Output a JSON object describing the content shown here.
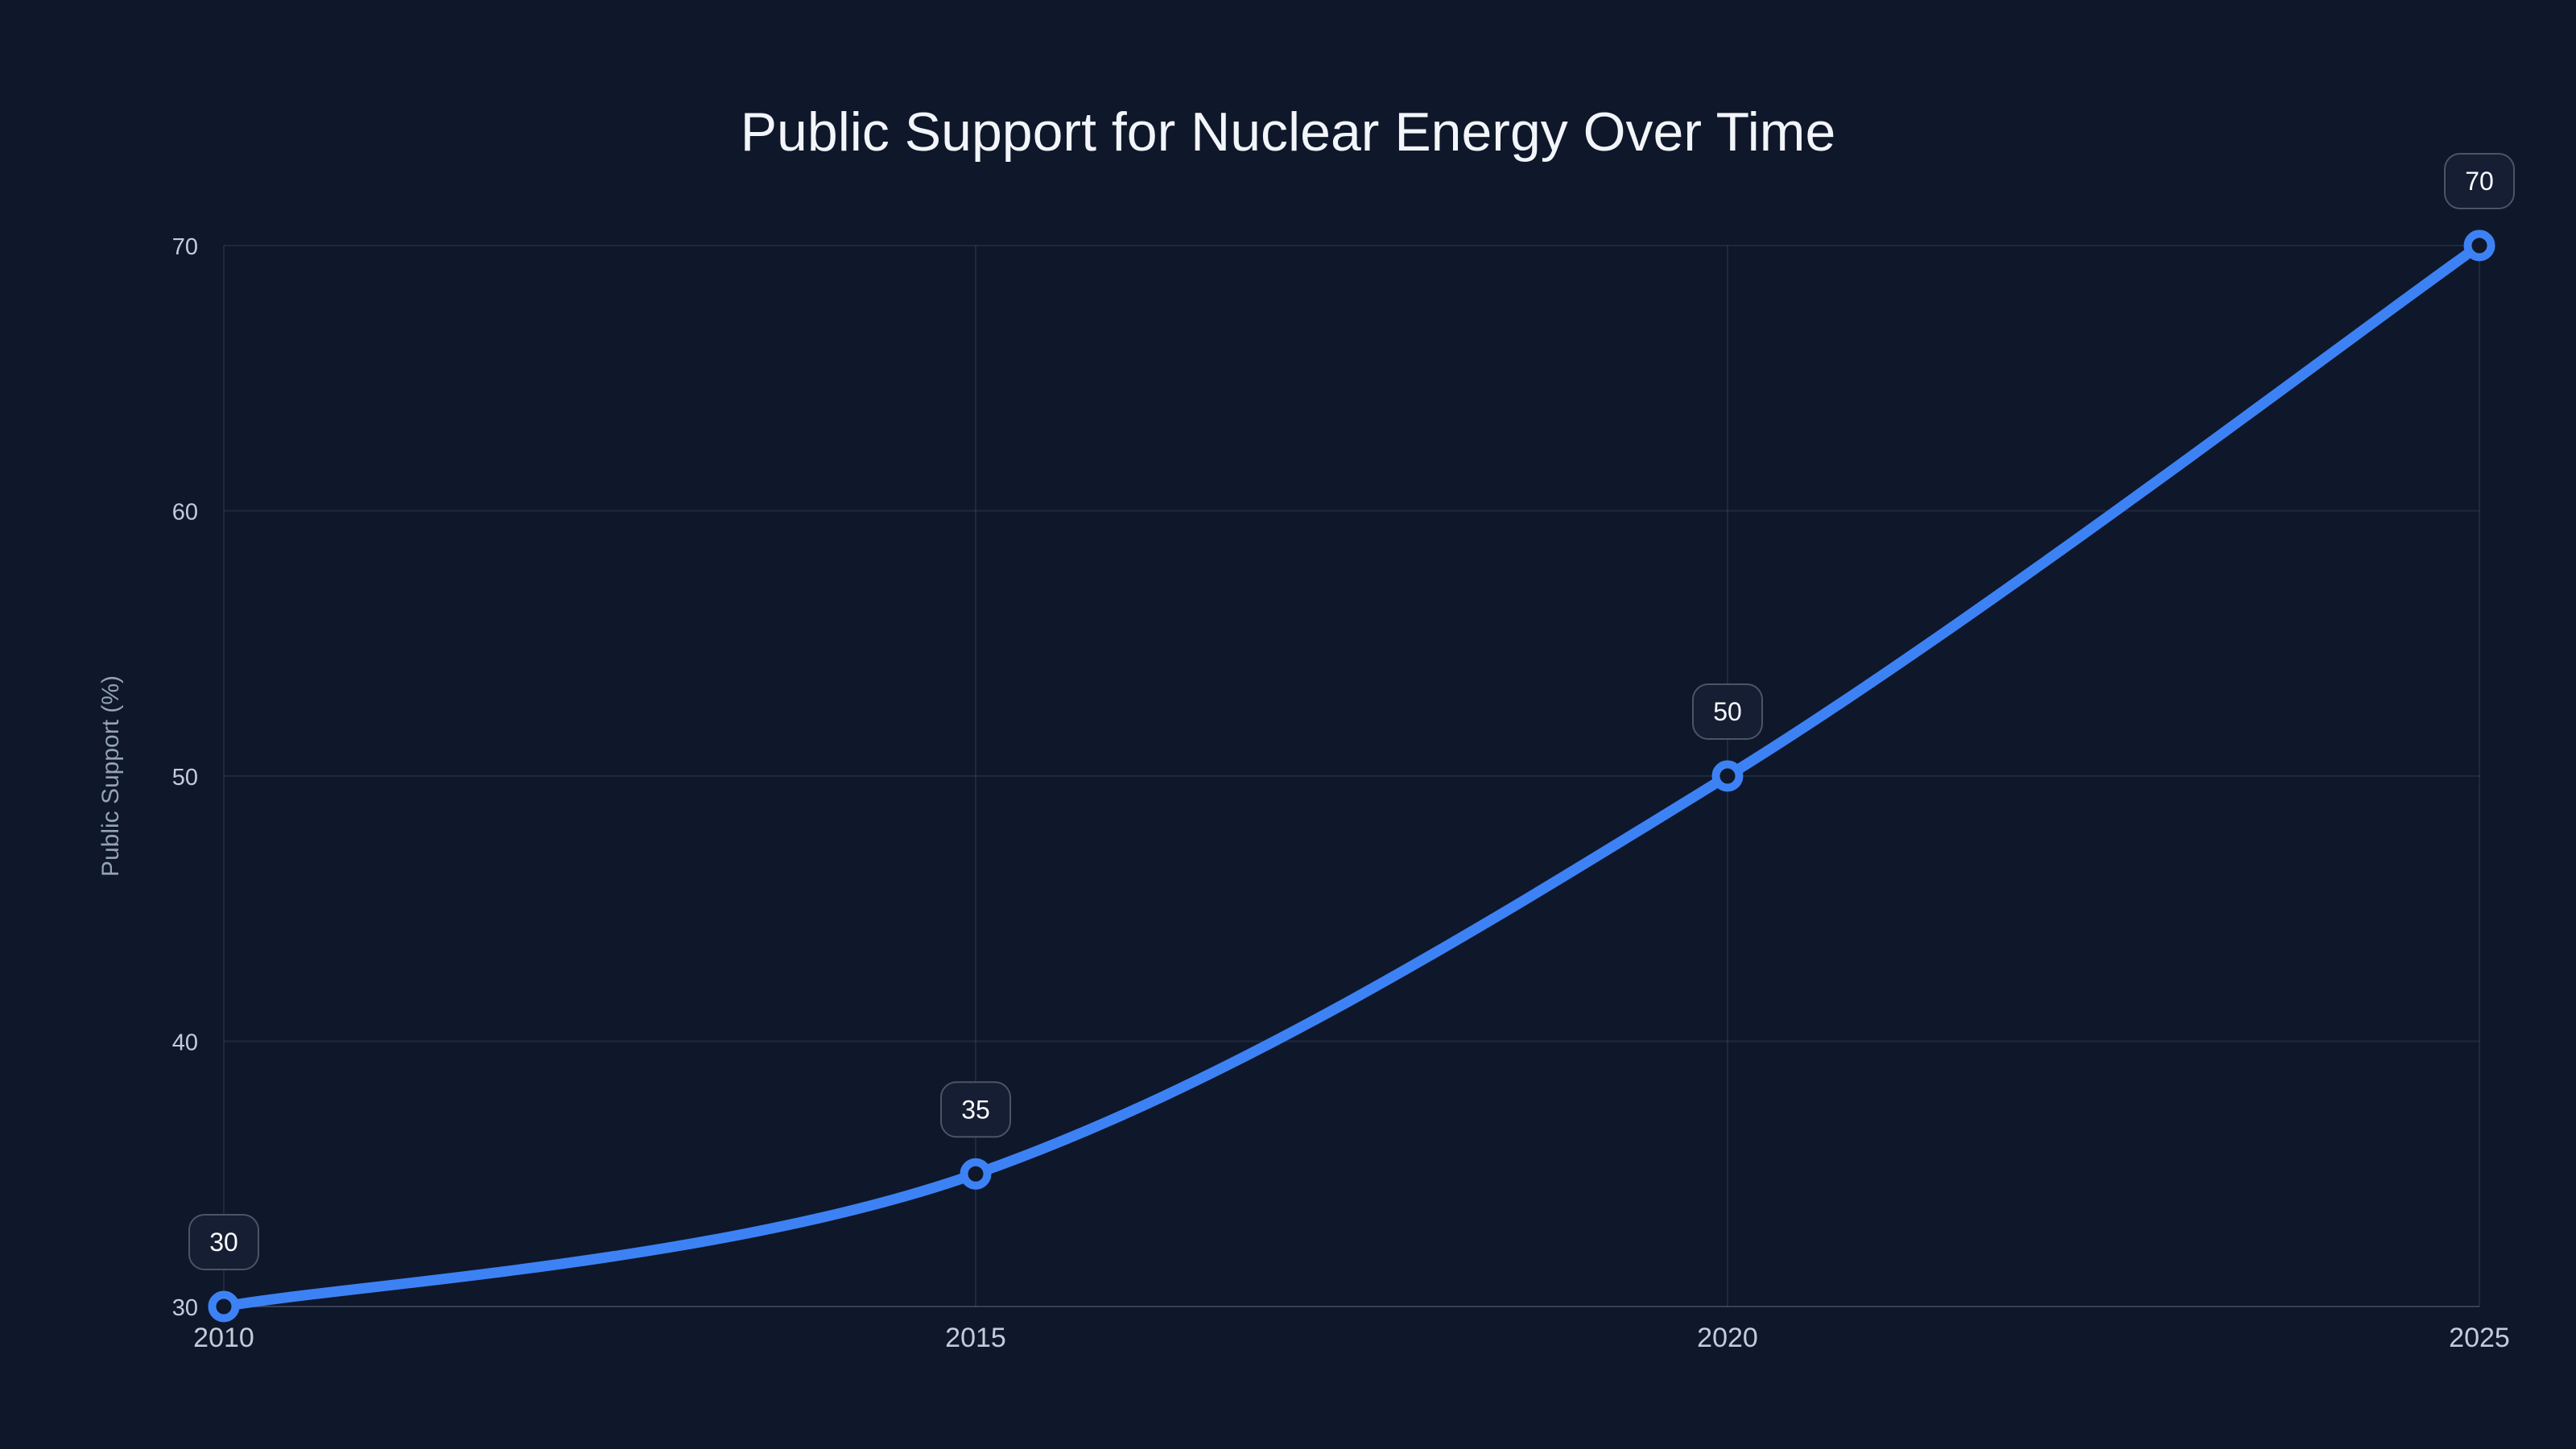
{
  "page": {
    "background": "#0f172a"
  },
  "chart_data": {
    "type": "line",
    "title": "Public Support for Nuclear Energy Over Time",
    "xlabel": "",
    "ylabel": "Public Support (%)",
    "x": [
      2010,
      2015,
      2020,
      2025
    ],
    "series": [
      {
        "name": "Public Support (%)",
        "values": [
          30,
          35,
          50,
          70
        ]
      }
    ],
    "data_labels": [
      "30",
      "35",
      "50",
      "70"
    ],
    "xticks": [
      "2010",
      "2015",
      "2020",
      "2025"
    ],
    "yticks": [
      "30",
      "40",
      "50",
      "60",
      "70"
    ],
    "ytick_values": [
      30,
      40,
      50,
      60,
      70
    ],
    "xlim": [
      2010,
      2025
    ],
    "ylim": [
      30,
      70
    ],
    "grid": true,
    "legend": false,
    "line_smoothing": true,
    "colors": {
      "line": "#3d82f5",
      "marker_fill": "#0f172a",
      "background": "#0f172a",
      "grid": "rgba(148,163,184,0.13)",
      "axis_line": "rgba(148,163,184,0.30)",
      "tick_label": "#c3ccd9",
      "axis_title": "#94a3b8",
      "chart_title": "#f2f5f9",
      "badge_background": "#151e32",
      "badge_border": "#4a5568",
      "badge_text": "#f8fafc"
    }
  }
}
